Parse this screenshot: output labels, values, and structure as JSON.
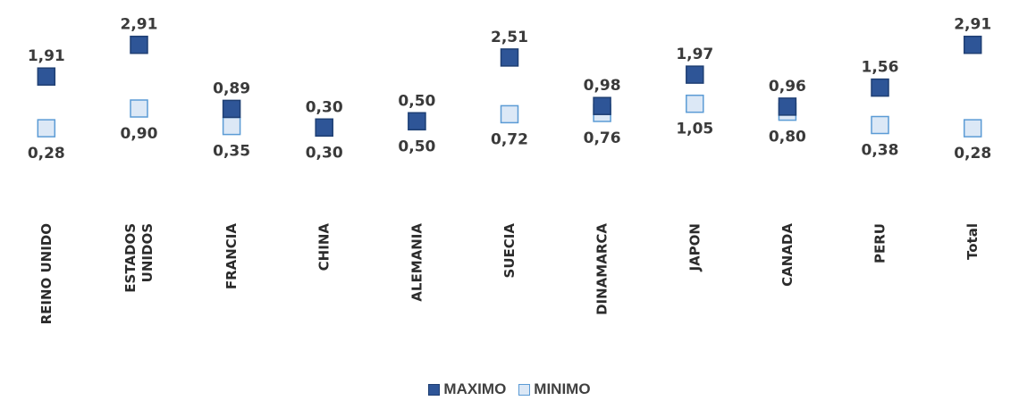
{
  "chart_data": {
    "type": "scatter",
    "categories": [
      [
        "REINO UNIDO"
      ],
      [
        "ESTADOS",
        "UNIDOS"
      ],
      [
        "FRANCIA"
      ],
      [
        "CHINA"
      ],
      [
        "ALEMANIA"
      ],
      [
        "SUECIA"
      ],
      [
        "DINAMARCA"
      ],
      [
        "JAPON"
      ],
      [
        "CANADA"
      ],
      [
        "PERU"
      ],
      [
        "Total"
      ]
    ],
    "series": [
      {
        "name": "MAXIMO",
        "color": "#2E5597",
        "border": "#1F3F73",
        "values": [
          1.91,
          2.91,
          0.89,
          0.3,
          0.5,
          2.51,
          0.98,
          1.97,
          0.96,
          1.56,
          2.91
        ],
        "labels": [
          "1,91",
          "2,91",
          "0,89",
          "0,30",
          "0,50",
          "2,51",
          "0,98",
          "1,97",
          "0,96",
          "1,56",
          "2,91"
        ]
      },
      {
        "name": "MINIMO",
        "color": "#DCE8F6",
        "border": "#5B9BD5",
        "values": [
          0.28,
          0.9,
          0.35,
          0.3,
          0.5,
          0.72,
          0.76,
          1.05,
          0.8,
          0.38,
          0.28
        ],
        "labels": [
          "0,28",
          "0,90",
          "0,35",
          "0,30",
          "0,50",
          "0,72",
          "0,76",
          "1,05",
          "0,80",
          "0,38",
          "0,28"
        ]
      }
    ],
    "legend": "bottom",
    "grid": false
  }
}
